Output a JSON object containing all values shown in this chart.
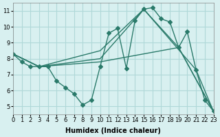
{
  "xlabel": "Humidex (Indice chaleur)",
  "ylabel": "",
  "xlim": [
    0,
    23
  ],
  "ylim": [
    4.5,
    11.5
  ],
  "xticks": [
    0,
    1,
    2,
    3,
    4,
    5,
    6,
    7,
    8,
    9,
    10,
    11,
    12,
    13,
    14,
    15,
    16,
    17,
    18,
    19,
    20,
    21,
    22,
    23
  ],
  "yticks": [
    5,
    6,
    7,
    8,
    9,
    10,
    11
  ],
  "bg_color": "#d8f0f0",
  "grid_color": "#b0d8d8",
  "line_color": "#2a7a6a",
  "lines": [
    {
      "x": [
        0,
        1,
        2,
        3,
        4,
        5,
        6,
        7,
        8,
        9,
        10,
        11,
        12,
        13,
        14,
        15,
        16,
        17,
        18,
        19,
        20,
        21,
        22,
        23
      ],
      "y": [
        8.3,
        7.8,
        7.5,
        7.5,
        7.5,
        6.6,
        6.2,
        5.8,
        5.1,
        5.4,
        7.5,
        9.6,
        9.9,
        7.4,
        10.4,
        11.1,
        11.2,
        10.5,
        10.3,
        8.7,
        9.7,
        7.3,
        5.4,
        4.7
      ]
    },
    {
      "x": [
        0,
        3,
        10,
        15,
        21,
        23
      ],
      "y": [
        8.3,
        7.5,
        8.5,
        11.1,
        7.3,
        4.7
      ]
    },
    {
      "x": [
        0,
        3,
        10,
        15,
        19,
        23
      ],
      "y": [
        8.3,
        7.5,
        8.0,
        11.1,
        8.7,
        4.7
      ]
    },
    {
      "x": [
        0,
        3,
        10,
        19,
        23
      ],
      "y": [
        8.3,
        7.5,
        7.8,
        8.7,
        4.7
      ]
    }
  ],
  "marker": "D",
  "markersize": 3,
  "linewidth": 1.0,
  "title_fontsize": 7,
  "xlabel_fontsize": 7,
  "tick_fontsize": 6
}
